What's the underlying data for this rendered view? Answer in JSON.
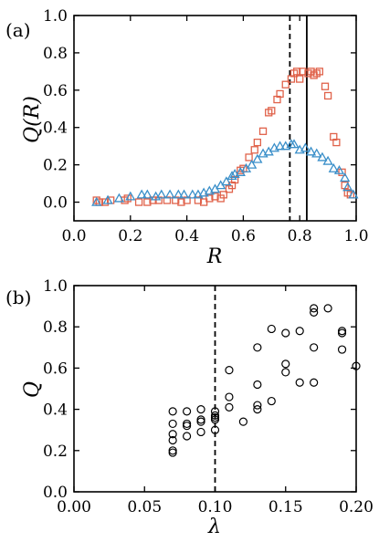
{
  "chart_data": [
    {
      "panel": "(a)",
      "type": "scatter",
      "xlabel": "R",
      "ylabel": "Q(R)",
      "xlim": [
        0.0,
        1.0
      ],
      "ylim": [
        -0.1,
        1.0
      ],
      "xticks": [
        "0.0",
        "0.2",
        "0.4",
        "0.6",
        "0.8",
        "1.0"
      ],
      "yticks": [
        "0.0",
        "0.2",
        "0.4",
        "0.6",
        "0.8",
        "1.0"
      ],
      "vlines": [
        {
          "x": 0.765,
          "style": "dashed"
        },
        {
          "x": 0.825,
          "style": "solid"
        }
      ],
      "series": [
        {
          "marker": "square",
          "color": "#e0624a",
          "points": [
            [
              0.08,
              0.01
            ],
            [
              0.09,
              0.0
            ],
            [
              0.11,
              0.0
            ],
            [
              0.13,
              0.01
            ],
            [
              0.18,
              0.01
            ],
            [
              0.19,
              0.02
            ],
            [
              0.23,
              0.0
            ],
            [
              0.26,
              0.0
            ],
            [
              0.28,
              0.01
            ],
            [
              0.3,
              0.01
            ],
            [
              0.33,
              0.01
            ],
            [
              0.36,
              0.01
            ],
            [
              0.38,
              0.0
            ],
            [
              0.4,
              0.01
            ],
            [
              0.44,
              0.01
            ],
            [
              0.46,
              0.0
            ],
            [
              0.48,
              0.02
            ],
            [
              0.5,
              0.03
            ],
            [
              0.52,
              0.02
            ],
            [
              0.53,
              0.04
            ],
            [
              0.55,
              0.07
            ],
            [
              0.56,
              0.09
            ],
            [
              0.57,
              0.12
            ],
            [
              0.59,
              0.17
            ],
            [
              0.6,
              0.18
            ],
            [
              0.62,
              0.24
            ],
            [
              0.64,
              0.28
            ],
            [
              0.65,
              0.32
            ],
            [
              0.67,
              0.38
            ],
            [
              0.69,
              0.48
            ],
            [
              0.7,
              0.49
            ],
            [
              0.72,
              0.55
            ],
            [
              0.73,
              0.58
            ],
            [
              0.75,
              0.63
            ],
            [
              0.77,
              0.66
            ],
            [
              0.78,
              0.69
            ],
            [
              0.79,
              0.7
            ],
            [
              0.8,
              0.66
            ],
            [
              0.81,
              0.7
            ],
            [
              0.83,
              0.69
            ],
            [
              0.84,
              0.7
            ],
            [
              0.85,
              0.68
            ],
            [
              0.86,
              0.69
            ],
            [
              0.87,
              0.7
            ],
            [
              0.89,
              0.62
            ],
            [
              0.9,
              0.57
            ],
            [
              0.92,
              0.35
            ],
            [
              0.93,
              0.32
            ],
            [
              0.95,
              0.16
            ],
            [
              0.96,
              0.09
            ],
            [
              0.97,
              0.05
            ],
            [
              0.98,
              0.04
            ]
          ]
        },
        {
          "marker": "triangle",
          "color": "#3a8fc9",
          "points": [
            [
              0.08,
              0.0
            ],
            [
              0.12,
              0.01
            ],
            [
              0.16,
              0.02
            ],
            [
              0.2,
              0.03
            ],
            [
              0.24,
              0.04
            ],
            [
              0.26,
              0.04
            ],
            [
              0.29,
              0.03
            ],
            [
              0.31,
              0.04
            ],
            [
              0.34,
              0.04
            ],
            [
              0.37,
              0.04
            ],
            [
              0.39,
              0.04
            ],
            [
              0.42,
              0.04
            ],
            [
              0.44,
              0.04
            ],
            [
              0.46,
              0.05
            ],
            [
              0.48,
              0.06
            ],
            [
              0.5,
              0.07
            ],
            [
              0.52,
              0.09
            ],
            [
              0.54,
              0.11
            ],
            [
              0.56,
              0.14
            ],
            [
              0.57,
              0.15
            ],
            [
              0.59,
              0.16
            ],
            [
              0.61,
              0.18
            ],
            [
              0.63,
              0.2
            ],
            [
              0.65,
              0.23
            ],
            [
              0.67,
              0.26
            ],
            [
              0.69,
              0.27
            ],
            [
              0.71,
              0.29
            ],
            [
              0.73,
              0.3
            ],
            [
              0.75,
              0.3
            ],
            [
              0.77,
              0.31
            ],
            [
              0.78,
              0.31
            ],
            [
              0.8,
              0.28
            ],
            [
              0.82,
              0.29
            ],
            [
              0.84,
              0.27
            ],
            [
              0.86,
              0.26
            ],
            [
              0.88,
              0.24
            ],
            [
              0.9,
              0.22
            ],
            [
              0.92,
              0.18
            ],
            [
              0.94,
              0.17
            ],
            [
              0.96,
              0.13
            ],
            [
              0.97,
              0.08
            ],
            [
              0.99,
              0.04
            ]
          ]
        }
      ]
    },
    {
      "panel": "(b)",
      "type": "scatter",
      "xlabel": "λ",
      "ylabel": "Q",
      "xlim": [
        0.0,
        0.2
      ],
      "ylim": [
        0.0,
        1.0
      ],
      "xticks": [
        "0.00",
        "0.05",
        "0.10",
        "0.15",
        "0.20"
      ],
      "yticks": [
        "0.0",
        "0.2",
        "0.4",
        "0.6",
        "0.8",
        "1.0"
      ],
      "vlines": [
        {
          "x": 0.1,
          "style": "dashed"
        }
      ],
      "series": [
        {
          "marker": "circle",
          "color": "#000000",
          "points": [
            [
              0.07,
              0.19
            ],
            [
              0.07,
              0.2
            ],
            [
              0.07,
              0.25
            ],
            [
              0.07,
              0.28
            ],
            [
              0.07,
              0.33
            ],
            [
              0.07,
              0.39
            ],
            [
              0.08,
              0.27
            ],
            [
              0.08,
              0.32
            ],
            [
              0.08,
              0.33
            ],
            [
              0.08,
              0.39
            ],
            [
              0.09,
              0.29
            ],
            [
              0.09,
              0.34
            ],
            [
              0.09,
              0.35
            ],
            [
              0.09,
              0.4
            ],
            [
              0.1,
              0.3
            ],
            [
              0.1,
              0.35
            ],
            [
              0.1,
              0.36
            ],
            [
              0.1,
              0.37
            ],
            [
              0.1,
              0.39
            ],
            [
              0.11,
              0.41
            ],
            [
              0.11,
              0.46
            ],
            [
              0.11,
              0.59
            ],
            [
              0.12,
              0.34
            ],
            [
              0.13,
              0.4
            ],
            [
              0.13,
              0.42
            ],
            [
              0.13,
              0.52
            ],
            [
              0.13,
              0.7
            ],
            [
              0.14,
              0.44
            ],
            [
              0.14,
              0.79
            ],
            [
              0.15,
              0.58
            ],
            [
              0.15,
              0.62
            ],
            [
              0.15,
              0.77
            ],
            [
              0.16,
              0.53
            ],
            [
              0.16,
              0.78
            ],
            [
              0.17,
              0.53
            ],
            [
              0.17,
              0.7
            ],
            [
              0.17,
              0.87
            ],
            [
              0.17,
              0.89
            ],
            [
              0.18,
              0.89
            ],
            [
              0.19,
              0.69
            ],
            [
              0.19,
              0.77
            ],
            [
              0.19,
              0.78
            ],
            [
              0.2,
              0.61
            ]
          ]
        }
      ]
    }
  ]
}
